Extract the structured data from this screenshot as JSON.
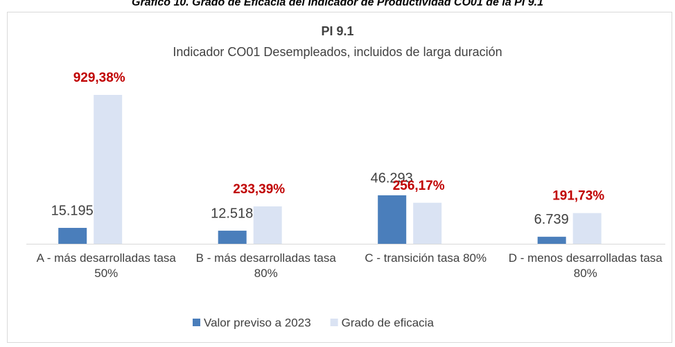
{
  "chart_data": {
    "type": "bar",
    "header": "Gráfico 10. Grado de Eficacia del Indicador de Productividad CO01 de la PI 9.1",
    "title": "PI 9.1",
    "subtitle": "Indicador CO01 Desempleados, incluidos de larga duración",
    "categories": [
      "A - más desarrolladas tasa 50%",
      "B - más desarrolladas tasa 80%",
      "C - transición tasa 80%",
      "D - menos desarrolladas tasa 80%"
    ],
    "series": [
      {
        "name": "Valor previso a 2023",
        "color": "#4a7ebb",
        "values": [
          15195,
          12518,
          46293,
          6739
        ],
        "value_labels": [
          "15.195",
          "12.518",
          "46.293",
          "6.739"
        ],
        "label_color": "#404040"
      },
      {
        "name": "Grado de eficacia",
        "color": "#dae3f3",
        "axis": "y2",
        "values": [
          929.38,
          233.39,
          256.17,
          191.73
        ],
        "value_labels": [
          "929,38%",
          "233,39%",
          "256,17%",
          "191,73%"
        ],
        "label_color": "#c00000"
      }
    ],
    "legend": "bottom"
  }
}
